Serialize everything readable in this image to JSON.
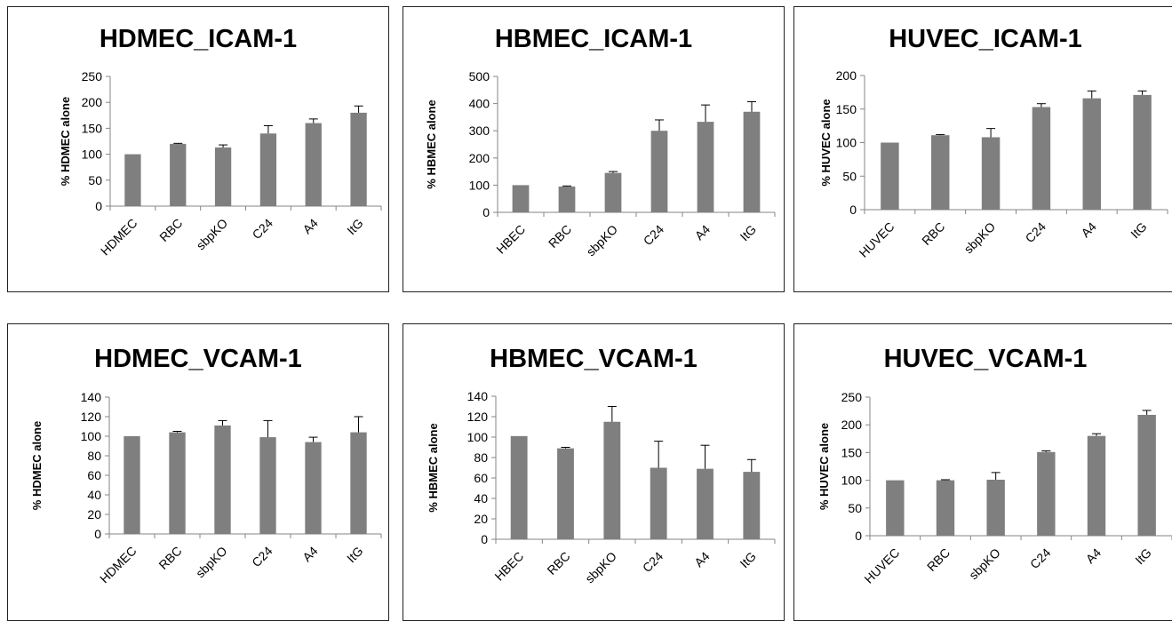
{
  "colors": {
    "bar": "#7f7f7f",
    "axis": "#868686",
    "text": "#000000",
    "border": "#222222"
  },
  "chart_data": [
    {
      "type": "bar",
      "title": "HDMEC_ICAM-1",
      "ylabel": "% HDMEC alone",
      "categories": [
        "HDMEC",
        "RBC",
        "sbpKO",
        "C24",
        "A4",
        "ItG"
      ],
      "values": [
        100,
        120,
        113,
        140,
        160,
        180
      ],
      "errors": [
        0,
        1,
        5,
        15,
        8,
        13
      ],
      "ylim": [
        0,
        250
      ],
      "yticks": [
        "0",
        "50",
        "100",
        "150",
        "200",
        "250"
      ],
      "grid": false
    },
    {
      "type": "bar",
      "title": "HBMEC_ICAM-1",
      "ylabel": "% HBMEC alone",
      "categories": [
        "HBEC",
        "RBC",
        "sbpKO",
        "C24",
        "A4",
        "ItG"
      ],
      "values": [
        100,
        95,
        145,
        300,
        333,
        370
      ],
      "errors": [
        0,
        2,
        5,
        40,
        62,
        37
      ],
      "ylim": [
        0,
        500
      ],
      "yticks": [
        "0",
        "100",
        "200",
        "300",
        "400",
        "500"
      ],
      "grid": false
    },
    {
      "type": "bar",
      "title": "HUVEC_ICAM-1",
      "ylabel": "% HUVEC alone",
      "categories": [
        "HUVEC",
        "RBC",
        "sbpKO",
        "C24",
        "A4",
        "ItG"
      ],
      "values": [
        100,
        111,
        108,
        153,
        166,
        171
      ],
      "errors": [
        0,
        1,
        13,
        5,
        11,
        6
      ],
      "ylim": [
        0,
        200
      ],
      "yticks": [
        "0",
        "50",
        "100",
        "150",
        "200"
      ],
      "grid": false
    },
    {
      "type": "bar",
      "title": "HDMEC_VCAM-1",
      "ylabel": "% HDMEC alone",
      "categories": [
        "HDMEC",
        "RBC",
        "sbpKO",
        "C24",
        "A4",
        "ItG"
      ],
      "values": [
        100,
        104,
        111,
        99,
        94,
        104
      ],
      "errors": [
        0,
        1,
        5,
        17,
        5,
        16
      ],
      "ylim": [
        0,
        140
      ],
      "yticks": [
        "0",
        "20",
        "40",
        "60",
        "80",
        "100",
        "120",
        "140"
      ],
      "grid": false
    },
    {
      "type": "bar",
      "title": "HBMEC_VCAM-1",
      "ylabel": "% HBMEC alone",
      "categories": [
        "HBEC",
        "RBC",
        "sbpKO",
        "C24",
        "A4",
        "ItG"
      ],
      "values": [
        101,
        89,
        115,
        70,
        69,
        66
      ],
      "errors": [
        0,
        1,
        15,
        26,
        23,
        12
      ],
      "ylim": [
        0,
        140
      ],
      "yticks": [
        "0",
        "20",
        "40",
        "60",
        "80",
        "100",
        "120",
        "140"
      ],
      "grid": false
    },
    {
      "type": "bar",
      "title": "HUVEC_VCAM-1",
      "ylabel": "% HUVEC alone",
      "categories": [
        "HUVEC",
        "RBC",
        "sbpKO",
        "C24",
        "A4",
        "ItG"
      ],
      "values": [
        100,
        100,
        101,
        151,
        180,
        218
      ],
      "errors": [
        0,
        1,
        13,
        2,
        4,
        8
      ],
      "ylim": [
        0,
        250
      ],
      "yticks": [
        "0",
        "50",
        "100",
        "150",
        "200",
        "250"
      ],
      "grid": false
    }
  ]
}
